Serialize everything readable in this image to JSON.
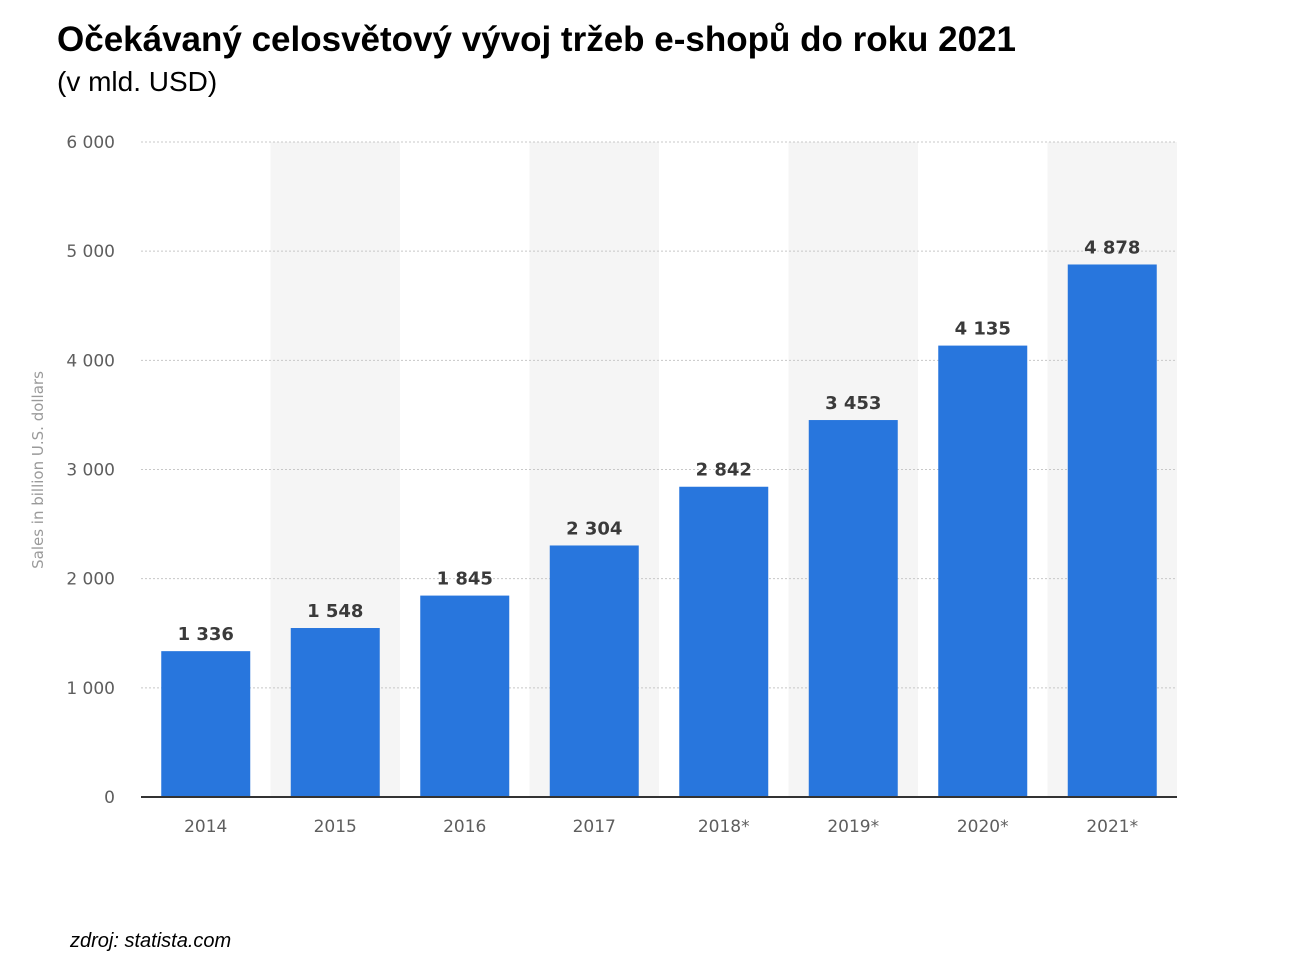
{
  "title": "Očekávaný celosvětový vývoj tržeb e-shopů do roku 2021",
  "subtitle": "(v mld. USD)",
  "source": "zdroj: statista.com",
  "chart_data": {
    "type": "bar",
    "categories": [
      "2014",
      "2015",
      "2016",
      "2017",
      "2018*",
      "2019*",
      "2020*",
      "2021*"
    ],
    "values": [
      1336,
      1548,
      1845,
      2304,
      2842,
      3453,
      4135,
      4878
    ],
    "value_labels": [
      "1 336",
      "1 548",
      "1 845",
      "2 304",
      "2 842",
      "3 453",
      "4 135",
      "4 878"
    ],
    "ylabel": "Sales in billion U.S. dollars",
    "xlabel": "",
    "ylim": [
      0,
      6000
    ],
    "yticks": [
      0,
      1000,
      2000,
      3000,
      4000,
      5000,
      6000
    ],
    "ytick_labels": [
      "0",
      "1 000",
      "2 000",
      "3 000",
      "4 000",
      "5 000",
      "6 000"
    ],
    "grid": true,
    "bar_color": "#2876dd",
    "band_color": "#f5f5f5"
  }
}
